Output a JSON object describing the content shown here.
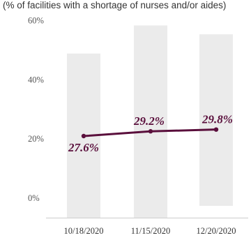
{
  "chart_data": {
    "type": "line",
    "subtitle": "(% of facilities with a shortage of nurses and/or aides)",
    "categories": [
      "10/18/2020",
      "11/15/2020",
      "12/20/2020"
    ],
    "series": [
      {
        "values": [
          27.6,
          29.2,
          29.8
        ],
        "labels": [
          "27.6%",
          "29.2%",
          "29.8%"
        ]
      }
    ],
    "background_bars": [
      {
        "bottom": 0,
        "top": 55.5
      },
      {
        "bottom": 0,
        "top": 65.0
      },
      {
        "bottom": 4,
        "top": 62.0
      }
    ],
    "y_ticks": [
      {
        "value": 0,
        "label": "0%"
      },
      {
        "value": 20,
        "label": "20%"
      },
      {
        "value": 40,
        "label": "40%"
      },
      {
        "value": 60,
        "label": "60%"
      }
    ],
    "ylim": [
      0,
      67
    ],
    "grid": false,
    "colors": {
      "line": "#5a0f3c",
      "bar": "#ebebeb",
      "axis": "#cccccc"
    }
  }
}
